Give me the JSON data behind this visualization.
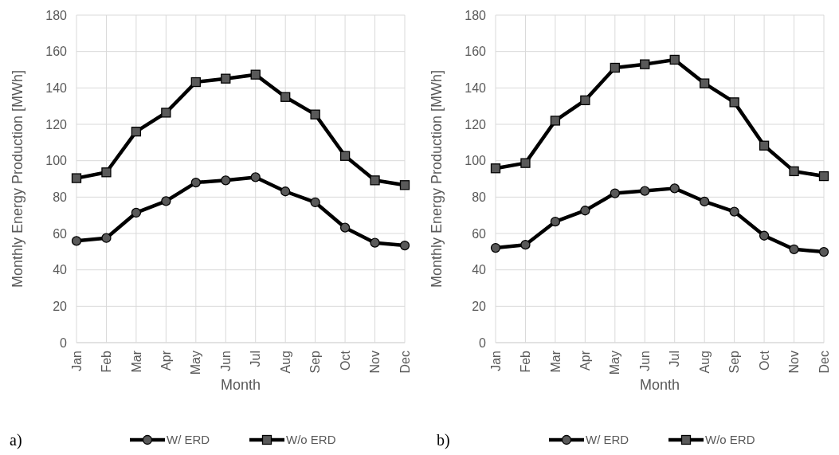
{
  "chart_data": [
    {
      "type": "line",
      "xlabel": "Month",
      "ylabel": "Monthly Energy Production [MWh]",
      "categories": [
        "Jan",
        "Feb",
        "Mar",
        "Apr",
        "May",
        "Jun",
        "Jul",
        "Aug",
        "Sep",
        "Oct",
        "Nov",
        "Dec"
      ],
      "series": [
        {
          "name": "W/ ERD",
          "color": "#000000",
          "marker": "circle",
          "values": [
            55.9,
            57.5,
            71.4,
            77.8,
            88,
            89.2,
            90.9,
            83.1,
            77.1,
            63.2,
            54.9,
            53.4
          ]
        },
        {
          "name": "W/o ERD",
          "color": "#000000",
          "marker": "square",
          "values": [
            90.4,
            93.6,
            116,
            126.4,
            143.2,
            145.1,
            147.3,
            135,
            125.4,
            102.6,
            89.2,
            86.6
          ]
        }
      ],
      "ylim": [
        0,
        180
      ],
      "yticks": [
        0,
        20,
        40,
        60,
        80,
        100,
        120,
        140,
        160,
        180
      ],
      "grid": true,
      "legend": "bottom",
      "line_style": "solid",
      "annotations": [
        "a)"
      ]
    },
    {
      "type": "line",
      "xlabel": "Month",
      "ylabel": "Monthly Energy Production [MWh]",
      "categories": [
        "Jan",
        "Feb",
        "Mar",
        "Apr",
        "May",
        "Jun",
        "Jul",
        "Aug",
        "Sep",
        "Oct",
        "Nov",
        "Dec"
      ],
      "series": [
        {
          "name": "W/ ERD",
          "color": "#000000",
          "marker": "circle",
          "values": [
            52.1,
            53.8,
            66.5,
            72.6,
            82.1,
            83.4,
            84.8,
            77.6,
            72,
            58.8,
            51.3,
            49.9
          ]
        },
        {
          "name": "W/o ERD",
          "color": "#000000",
          "marker": "square",
          "values": [
            95.8,
            98.7,
            122,
            133.2,
            151.1,
            153,
            155.5,
            142.5,
            132.1,
            108.3,
            94.2,
            91.5
          ]
        }
      ],
      "ylim": [
        0,
        180
      ],
      "yticks": [
        0,
        20,
        40,
        60,
        80,
        100,
        120,
        140,
        160,
        180
      ],
      "grid": true,
      "legend": "bottom",
      "line_style": "solid",
      "annotations": [
        "b)"
      ]
    }
  ]
}
